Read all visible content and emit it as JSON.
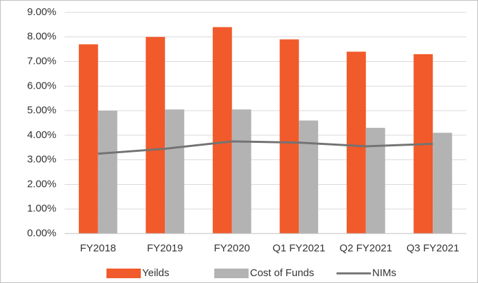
{
  "chart_data": {
    "type": "bar",
    "categories": [
      "FY2018",
      "FY2019",
      "FY2020",
      "Q1 FY2021",
      "Q2 FY2021",
      "Q3 FY2021"
    ],
    "series": [
      {
        "name": "Yeilds",
        "color": "#f15a2b",
        "values": [
          7.7,
          8.0,
          8.4,
          7.9,
          7.4,
          7.3
        ]
      },
      {
        "name": "Cost of Funds",
        "color": "#b3b3b3",
        "values": [
          5.0,
          5.05,
          5.05,
          4.6,
          4.3,
          4.1
        ]
      },
      {
        "name": "NIMs",
        "color": "#737373",
        "type": "line",
        "values": [
          3.25,
          3.45,
          3.75,
          3.7,
          3.55,
          3.65
        ]
      }
    ],
    "ylim": [
      0,
      9
    ],
    "yticks": [
      {
        "value": 0,
        "label": "0.00%"
      },
      {
        "value": 1,
        "label": "1.00%"
      },
      {
        "value": 2,
        "label": "2.00%"
      },
      {
        "value": 3,
        "label": "3.00%"
      },
      {
        "value": 4,
        "label": "4.00%"
      },
      {
        "value": 5,
        "label": "5.00%"
      },
      {
        "value": 6,
        "label": "6.00%"
      },
      {
        "value": 7,
        "label": "7.00%"
      },
      {
        "value": 8,
        "label": "8.00%"
      },
      {
        "value": 9,
        "label": "9.00%"
      }
    ],
    "grid": true,
    "legend": "bottom"
  }
}
